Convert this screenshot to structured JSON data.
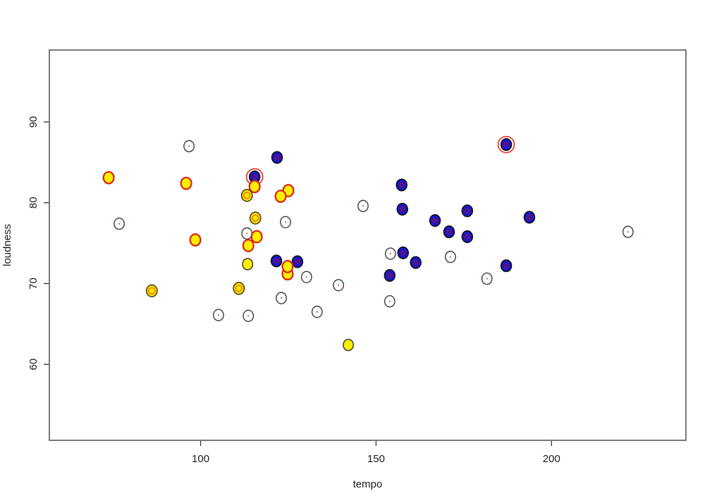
{
  "figure": {
    "background": "#ffffff"
  },
  "colors": {
    "plot_border": "#787878",
    "tick_stroke": "#333333",
    "text": "#1a1a1a",
    "blue_fill": "#1a17d2",
    "blue_stroke": "#101010",
    "blue_inner_ring": "#aa1111",
    "yellow_fill": "#ffee00",
    "red_stroke": "#dd2010",
    "dark_stroke": "#3c3c3c",
    "double_outer_stroke": "#4a3c14",
    "orange_inner_ring": "#ee8800",
    "red_center_dot": "#ee5544",
    "halo_ring": "#e63326",
    "open_fill": "#ffffff"
  },
  "chart_data": {
    "type": "scatter",
    "title": "",
    "xlabel": "tempo",
    "ylabel": "loudness",
    "x_ticks": [
      100,
      150,
      200
    ],
    "y_ticks": [
      60,
      70,
      80,
      90
    ],
    "xlim": [
      56.9,
      238.3
    ],
    "ylim": [
      50.6,
      98.9
    ],
    "grid": false,
    "legend_position": "none",
    "style_legend": {
      "open": "white fill, dark outline, tiny red center dot",
      "blue": "blue fill, dark outline, small red inner ring",
      "yellow_red": "yellow fill, red outline",
      "yellow_dark": "yellow fill, dark outline",
      "yellow_double": "yellow fill, dark outline, orange inner ring",
      "halo": "extra red highlight circle around point"
    },
    "points": [
      {
        "tempo": 73.8,
        "loudness": 83.1,
        "style": "yellow_red",
        "halo": false
      },
      {
        "tempo": 76.8,
        "loudness": 77.4,
        "style": "open",
        "halo": false
      },
      {
        "tempo": 86.1,
        "loudness": 69.1,
        "style": "yellow_double",
        "halo": false
      },
      {
        "tempo": 96.7,
        "loudness": 87.0,
        "style": "open",
        "halo": false
      },
      {
        "tempo": 95.9,
        "loudness": 82.4,
        "style": "yellow_red",
        "halo": false
      },
      {
        "tempo": 98.5,
        "loudness": 75.4,
        "style": "yellow_red",
        "halo": false
      },
      {
        "tempo": 105.1,
        "loudness": 66.1,
        "style": "open",
        "halo": false
      },
      {
        "tempo": 110.9,
        "loudness": 69.4,
        "style": "yellow_double",
        "halo": false
      },
      {
        "tempo": 113.6,
        "loudness": 66.0,
        "style": "open",
        "halo": false
      },
      {
        "tempo": 121.8,
        "loudness": 85.6,
        "style": "blue",
        "halo": false
      },
      {
        "tempo": 115.4,
        "loudness": 83.2,
        "style": "blue",
        "halo": true
      },
      {
        "tempo": 115.4,
        "loudness": 82.0,
        "style": "yellow_red",
        "halo": false
      },
      {
        "tempo": 113.2,
        "loudness": 80.9,
        "style": "yellow_double",
        "halo": false
      },
      {
        "tempo": 125.0,
        "loudness": 81.5,
        "style": "yellow_red",
        "halo": false
      },
      {
        "tempo": 122.8,
        "loudness": 80.8,
        "style": "yellow_red",
        "halo": false
      },
      {
        "tempo": 115.6,
        "loudness": 78.1,
        "style": "yellow_double",
        "halo": false
      },
      {
        "tempo": 124.2,
        "loudness": 77.6,
        "style": "open",
        "halo": false
      },
      {
        "tempo": 113.2,
        "loudness": 76.2,
        "style": "open",
        "halo": false
      },
      {
        "tempo": 116.0,
        "loudness": 75.8,
        "style": "yellow_red",
        "halo": false
      },
      {
        "tempo": 113.6,
        "loudness": 74.7,
        "style": "yellow_red",
        "halo": false
      },
      {
        "tempo": 113.4,
        "loudness": 72.4,
        "style": "yellow_dark",
        "halo": false
      },
      {
        "tempo": 121.6,
        "loudness": 72.8,
        "style": "blue",
        "halo": false
      },
      {
        "tempo": 127.6,
        "loudness": 72.7,
        "style": "blue",
        "halo": false
      },
      {
        "tempo": 124.8,
        "loudness": 71.2,
        "style": "yellow_red",
        "halo": false
      },
      {
        "tempo": 124.8,
        "loudness": 72.1,
        "style": "yellow_red",
        "halo": false
      },
      {
        "tempo": 130.2,
        "loudness": 70.8,
        "style": "open",
        "halo": false
      },
      {
        "tempo": 123.0,
        "loudness": 68.2,
        "style": "open",
        "halo": false
      },
      {
        "tempo": 139.3,
        "loudness": 69.8,
        "style": "open",
        "halo": false
      },
      {
        "tempo": 133.2,
        "loudness": 66.5,
        "style": "open",
        "halo": false
      },
      {
        "tempo": 142.1,
        "loudness": 62.4,
        "style": "yellow_dark",
        "halo": false
      },
      {
        "tempo": 146.3,
        "loudness": 79.6,
        "style": "open",
        "halo": false
      },
      {
        "tempo": 157.3,
        "loudness": 82.2,
        "style": "blue",
        "halo": false
      },
      {
        "tempo": 157.5,
        "loudness": 79.2,
        "style": "blue",
        "halo": false
      },
      {
        "tempo": 154.1,
        "loudness": 73.7,
        "style": "open",
        "halo": false
      },
      {
        "tempo": 157.7,
        "loudness": 73.8,
        "style": "blue",
        "halo": false
      },
      {
        "tempo": 161.3,
        "loudness": 72.6,
        "style": "blue",
        "halo": false
      },
      {
        "tempo": 153.9,
        "loudness": 71.0,
        "style": "blue",
        "halo": false
      },
      {
        "tempo": 153.9,
        "loudness": 67.8,
        "style": "open",
        "halo": false
      },
      {
        "tempo": 166.8,
        "loudness": 77.8,
        "style": "blue",
        "halo": false
      },
      {
        "tempo": 170.8,
        "loudness": 76.4,
        "style": "blue",
        "halo": false
      },
      {
        "tempo": 171.2,
        "loudness": 73.3,
        "style": "open",
        "halo": false
      },
      {
        "tempo": 176.0,
        "loudness": 79.0,
        "style": "blue",
        "halo": false
      },
      {
        "tempo": 176.0,
        "loudness": 75.8,
        "style": "blue",
        "halo": false
      },
      {
        "tempo": 181.6,
        "loudness": 70.6,
        "style": "open",
        "halo": false
      },
      {
        "tempo": 187.1,
        "loudness": 87.2,
        "style": "blue",
        "halo": true
      },
      {
        "tempo": 187.1,
        "loudness": 72.2,
        "style": "blue",
        "halo": false
      },
      {
        "tempo": 193.7,
        "loudness": 78.2,
        "style": "blue",
        "halo": false
      },
      {
        "tempo": 221.8,
        "loudness": 76.4,
        "style": "open",
        "halo": false
      }
    ]
  }
}
